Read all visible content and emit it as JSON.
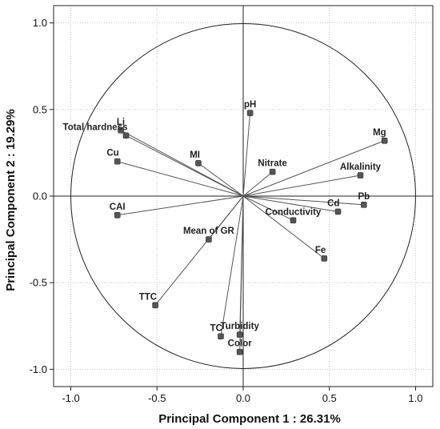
{
  "chart_data": {
    "type": "scatter",
    "subtype": "pca-loading-plot",
    "xlabel": "Principal Component 1 : 26.31%",
    "ylabel": "Principal Component 2 : 19.29%",
    "xlim": [
      -1.1,
      1.1
    ],
    "ylim": [
      -1.1,
      1.1
    ],
    "xticks": [
      "-1.0",
      "-0.5",
      "0.0",
      "0.5",
      "1.0"
    ],
    "yticks": [
      "-1.0",
      "-0.5",
      "0.0",
      "0.5",
      "1.0"
    ],
    "grid": true,
    "unit_circle": true,
    "points": [
      {
        "name": "pH",
        "x": 0.04,
        "y": 0.48
      },
      {
        "name": "Li",
        "x": -0.71,
        "y": 0.38
      },
      {
        "name": "Total hardness",
        "x": -0.68,
        "y": 0.35
      },
      {
        "name": "Mg",
        "x": 0.82,
        "y": 0.32
      },
      {
        "name": "MI",
        "x": -0.26,
        "y": 0.19
      },
      {
        "name": "Cu",
        "x": -0.73,
        "y": 0.2
      },
      {
        "name": "Nitrate",
        "x": 0.17,
        "y": 0.14
      },
      {
        "name": "Alkalinity",
        "x": 0.68,
        "y": 0.12
      },
      {
        "name": "CAI",
        "x": -0.73,
        "y": -0.11
      },
      {
        "name": "Cd",
        "x": 0.55,
        "y": -0.09
      },
      {
        "name": "Pb",
        "x": 0.7,
        "y": -0.05
      },
      {
        "name": "Conductivity",
        "x": 0.29,
        "y": -0.14
      },
      {
        "name": "Mean of GR",
        "x": -0.2,
        "y": -0.25
      },
      {
        "name": "Fe",
        "x": 0.47,
        "y": -0.36
      },
      {
        "name": "TTC",
        "x": -0.51,
        "y": -0.63
      },
      {
        "name": "TC",
        "x": -0.13,
        "y": -0.81
      },
      {
        "name": "Turbidity",
        "x": -0.02,
        "y": -0.8
      },
      {
        "name": "Color",
        "x": -0.02,
        "y": -0.9
      }
    ],
    "label_placement": {
      "pH": "above",
      "Li": "above",
      "Total hardness": "above-left",
      "Mg": "above-left",
      "MI": "above-left",
      "Cu": "above-left",
      "Nitrate": "above",
      "Alkalinity": "above",
      "CAI": "above",
      "Cd": "above-left",
      "Pb": "above",
      "Conductivity": "above",
      "Mean of GR": "above",
      "Fe": "above-left",
      "TTC": "above-left",
      "TC": "above-left",
      "Turbidity": "above",
      "Color": "above"
    }
  }
}
